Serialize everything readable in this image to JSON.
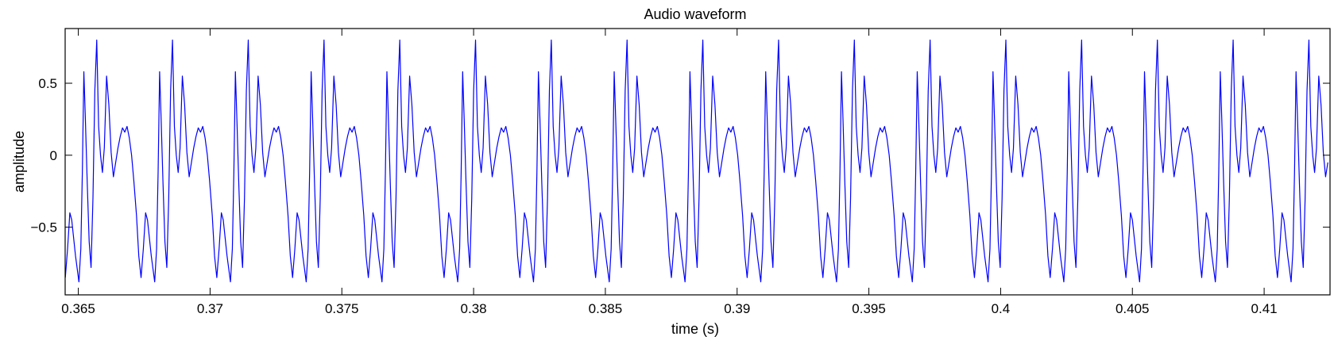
{
  "chart_data": {
    "type": "line",
    "title": "Audio waveform",
    "xlabel": "time (s)",
    "ylabel": "amplitude",
    "xlim": [
      0.3645,
      0.4125
    ],
    "ylim": [
      -0.97,
      0.88
    ],
    "xticks": [
      0.365,
      0.37,
      0.375,
      0.38,
      0.385,
      0.39,
      0.395,
      0.4,
      0.405,
      0.41
    ],
    "xtick_labels": [
      "0.365",
      "0.37",
      "0.375",
      "0.38",
      "0.385",
      "0.39",
      "0.395",
      "0.4",
      "0.405",
      "0.41"
    ],
    "yticks": [
      0.5,
      0,
      -0.5
    ],
    "ytick_labels": [
      "0.5",
      "0",
      "−0.5"
    ],
    "grid": false,
    "line_color": "#0000ff",
    "series": [
      {
        "period_s": 0.002875,
        "cycle_start_s": 0.36475,
        "cycle_shape": [
          [
            0.0,
            -0.45
          ],
          [
            0.05,
            -0.7
          ],
          [
            0.095,
            -0.88
          ],
          [
            0.12,
            -0.65
          ],
          [
            0.14,
            -0.12
          ],
          [
            0.16,
            0.58
          ],
          [
            0.18,
            0.25
          ],
          [
            0.205,
            -0.2
          ],
          [
            0.23,
            -0.6
          ],
          [
            0.255,
            -0.78
          ],
          [
            0.28,
            -0.3
          ],
          [
            0.305,
            0.45
          ],
          [
            0.33,
            0.8
          ],
          [
            0.355,
            0.2
          ],
          [
            0.38,
            0.0
          ],
          [
            0.405,
            -0.12
          ],
          [
            0.43,
            0.05
          ],
          [
            0.46,
            0.55
          ],
          [
            0.49,
            0.35
          ],
          [
            0.52,
            0.02
          ],
          [
            0.55,
            -0.15
          ],
          [
            0.58,
            -0.05
          ],
          [
            0.61,
            0.05
          ],
          [
            0.64,
            0.13
          ],
          [
            0.67,
            0.19
          ],
          [
            0.7,
            0.16
          ],
          [
            0.73,
            0.2
          ],
          [
            0.76,
            0.12
          ],
          [
            0.79,
            0.0
          ],
          [
            0.82,
            -0.18
          ],
          [
            0.855,
            -0.42
          ],
          [
            0.885,
            -0.7
          ],
          [
            0.915,
            -0.85
          ],
          [
            0.945,
            -0.65
          ],
          [
            0.975,
            -0.4
          ],
          [
            1.0,
            -0.45
          ]
        ]
      }
    ]
  }
}
